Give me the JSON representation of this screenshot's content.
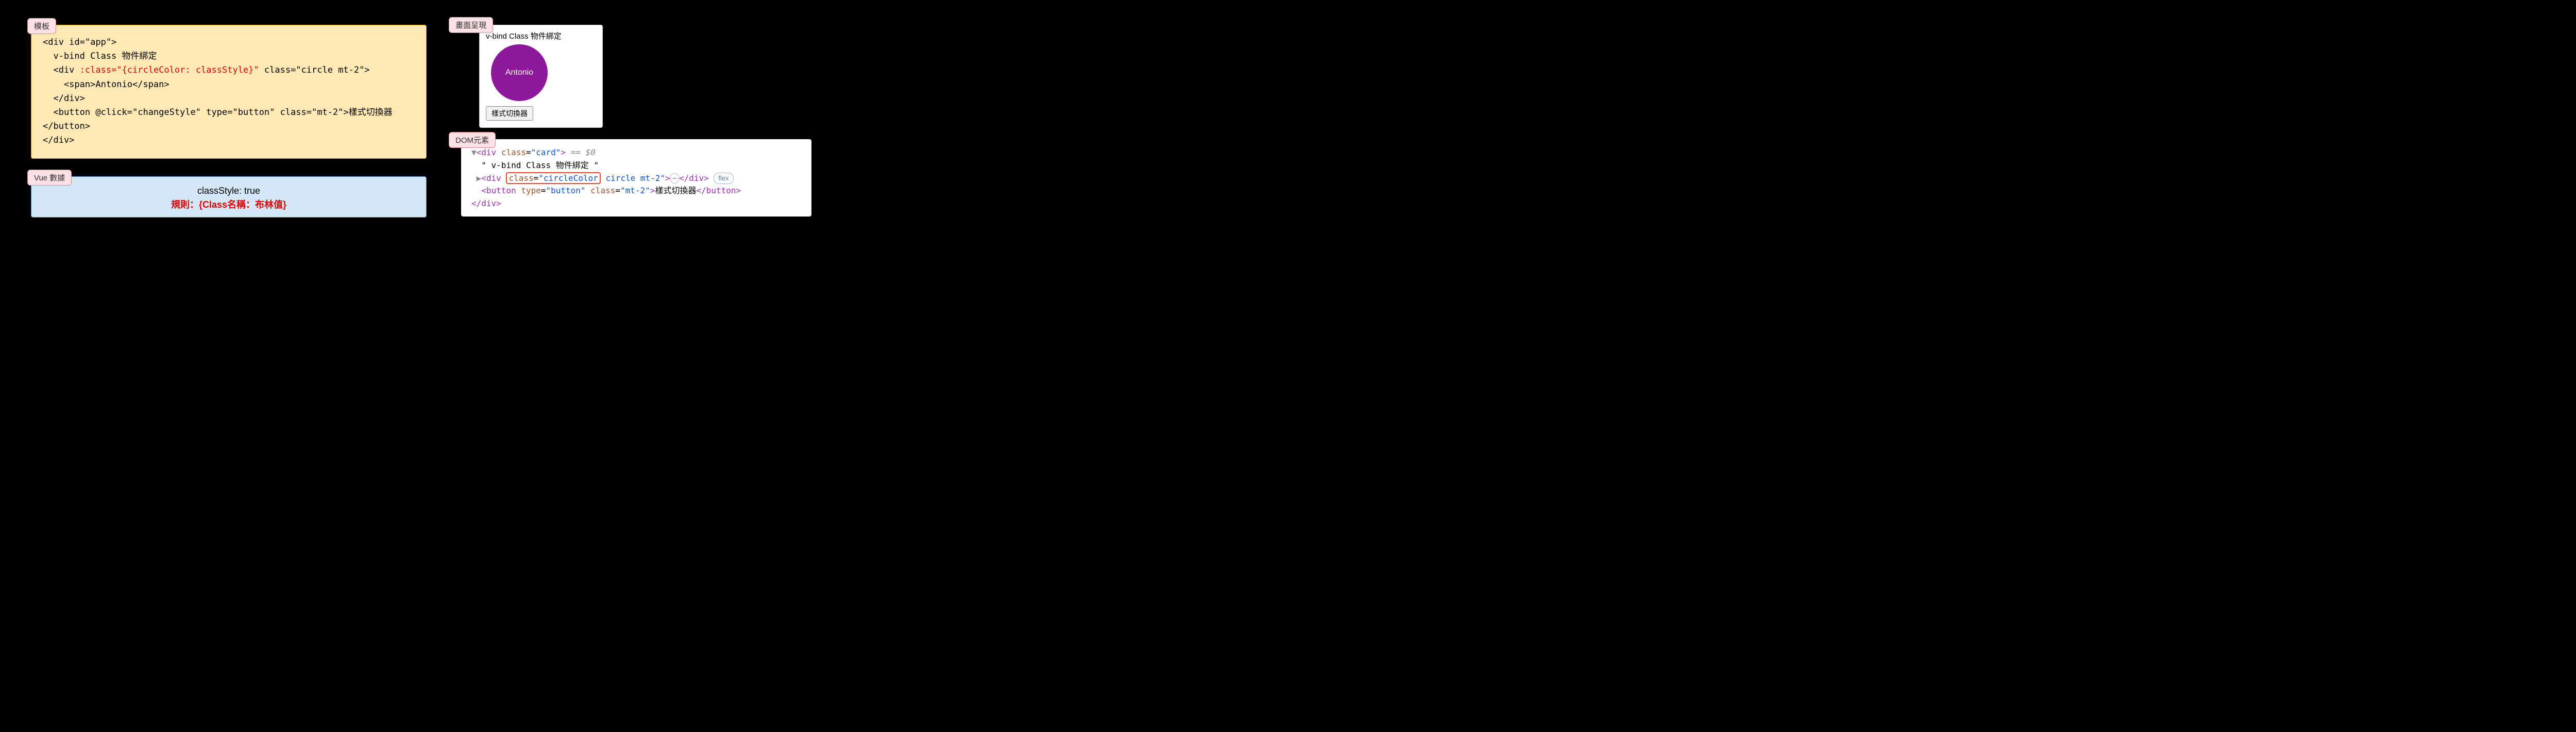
{
  "template_panel": {
    "label": "模板",
    "bg_color": "#fee9b4",
    "border_color": "#d89b00",
    "code": {
      "line1": "<div id=\"app\">",
      "line2": "  v-bind Class 物件綁定",
      "line3_pre": "  <div ",
      "line3_hl": ":class=\"{circleColor: classStyle}\"",
      "line3_post": " class=\"circle mt-2\">",
      "line4": "    <span>Antonio</span>",
      "line5": "  </div>",
      "line6": "  <button @click=\"changeStyle\" type=\"button\" class=\"mt-2\">樣式切換器",
      "line7": "</button>",
      "line8": "</div>",
      "highlight_color": "#e10000"
    }
  },
  "data_panel": {
    "label": "Vue 數據",
    "bg_color": "#d3e7f8",
    "border_color": "#4a7fbc",
    "line1": "classStyle: true",
    "rule": "規則：{Class名稱：布林值}",
    "rule_color": "#e10000"
  },
  "render_panel": {
    "label": "畫面呈現",
    "title": "v-bind Class 物件綁定",
    "circle_text": "Antonio",
    "circle_color": "#8e189a",
    "button_text": "樣式切換器"
  },
  "dom_panel": {
    "label": "DOM元素",
    "colors": {
      "tag": "#9b2fae",
      "attr": "#a0522d",
      "val": "#1155cc",
      "gray": "#888888",
      "text": "#000000",
      "highlight_border": "#ee4433"
    },
    "l1": {
      "tri": "▼",
      "open": "<div ",
      "attr": "class",
      "eq": "=",
      "val": "\"card\"",
      "close": ">",
      "dollar": " == $0"
    },
    "l2": {
      "text": "  \" v-bind Class 物件綁定 \""
    },
    "l3": {
      "tri": "▶",
      "open": "<div ",
      "hl_attr": "class",
      "hl_eq": "=",
      "hl_val": "\"circleColor",
      "rest_val": " circle mt-2\"",
      "close": ">",
      "ellipsis": "⋯",
      "end": "</div>",
      "flex": "flex"
    },
    "l4": {
      "open": "  <button ",
      "attr1": "type",
      "val1": "\"button\"",
      "attr2": "class",
      "val2": "\"mt-2\"",
      "close": ">",
      "text": "樣式切換器",
      "end": "</button>"
    },
    "l5": {
      "end": "</div>"
    }
  },
  "label_tab_style": {
    "bg": "#fde1e6",
    "border": "#dd8888"
  }
}
